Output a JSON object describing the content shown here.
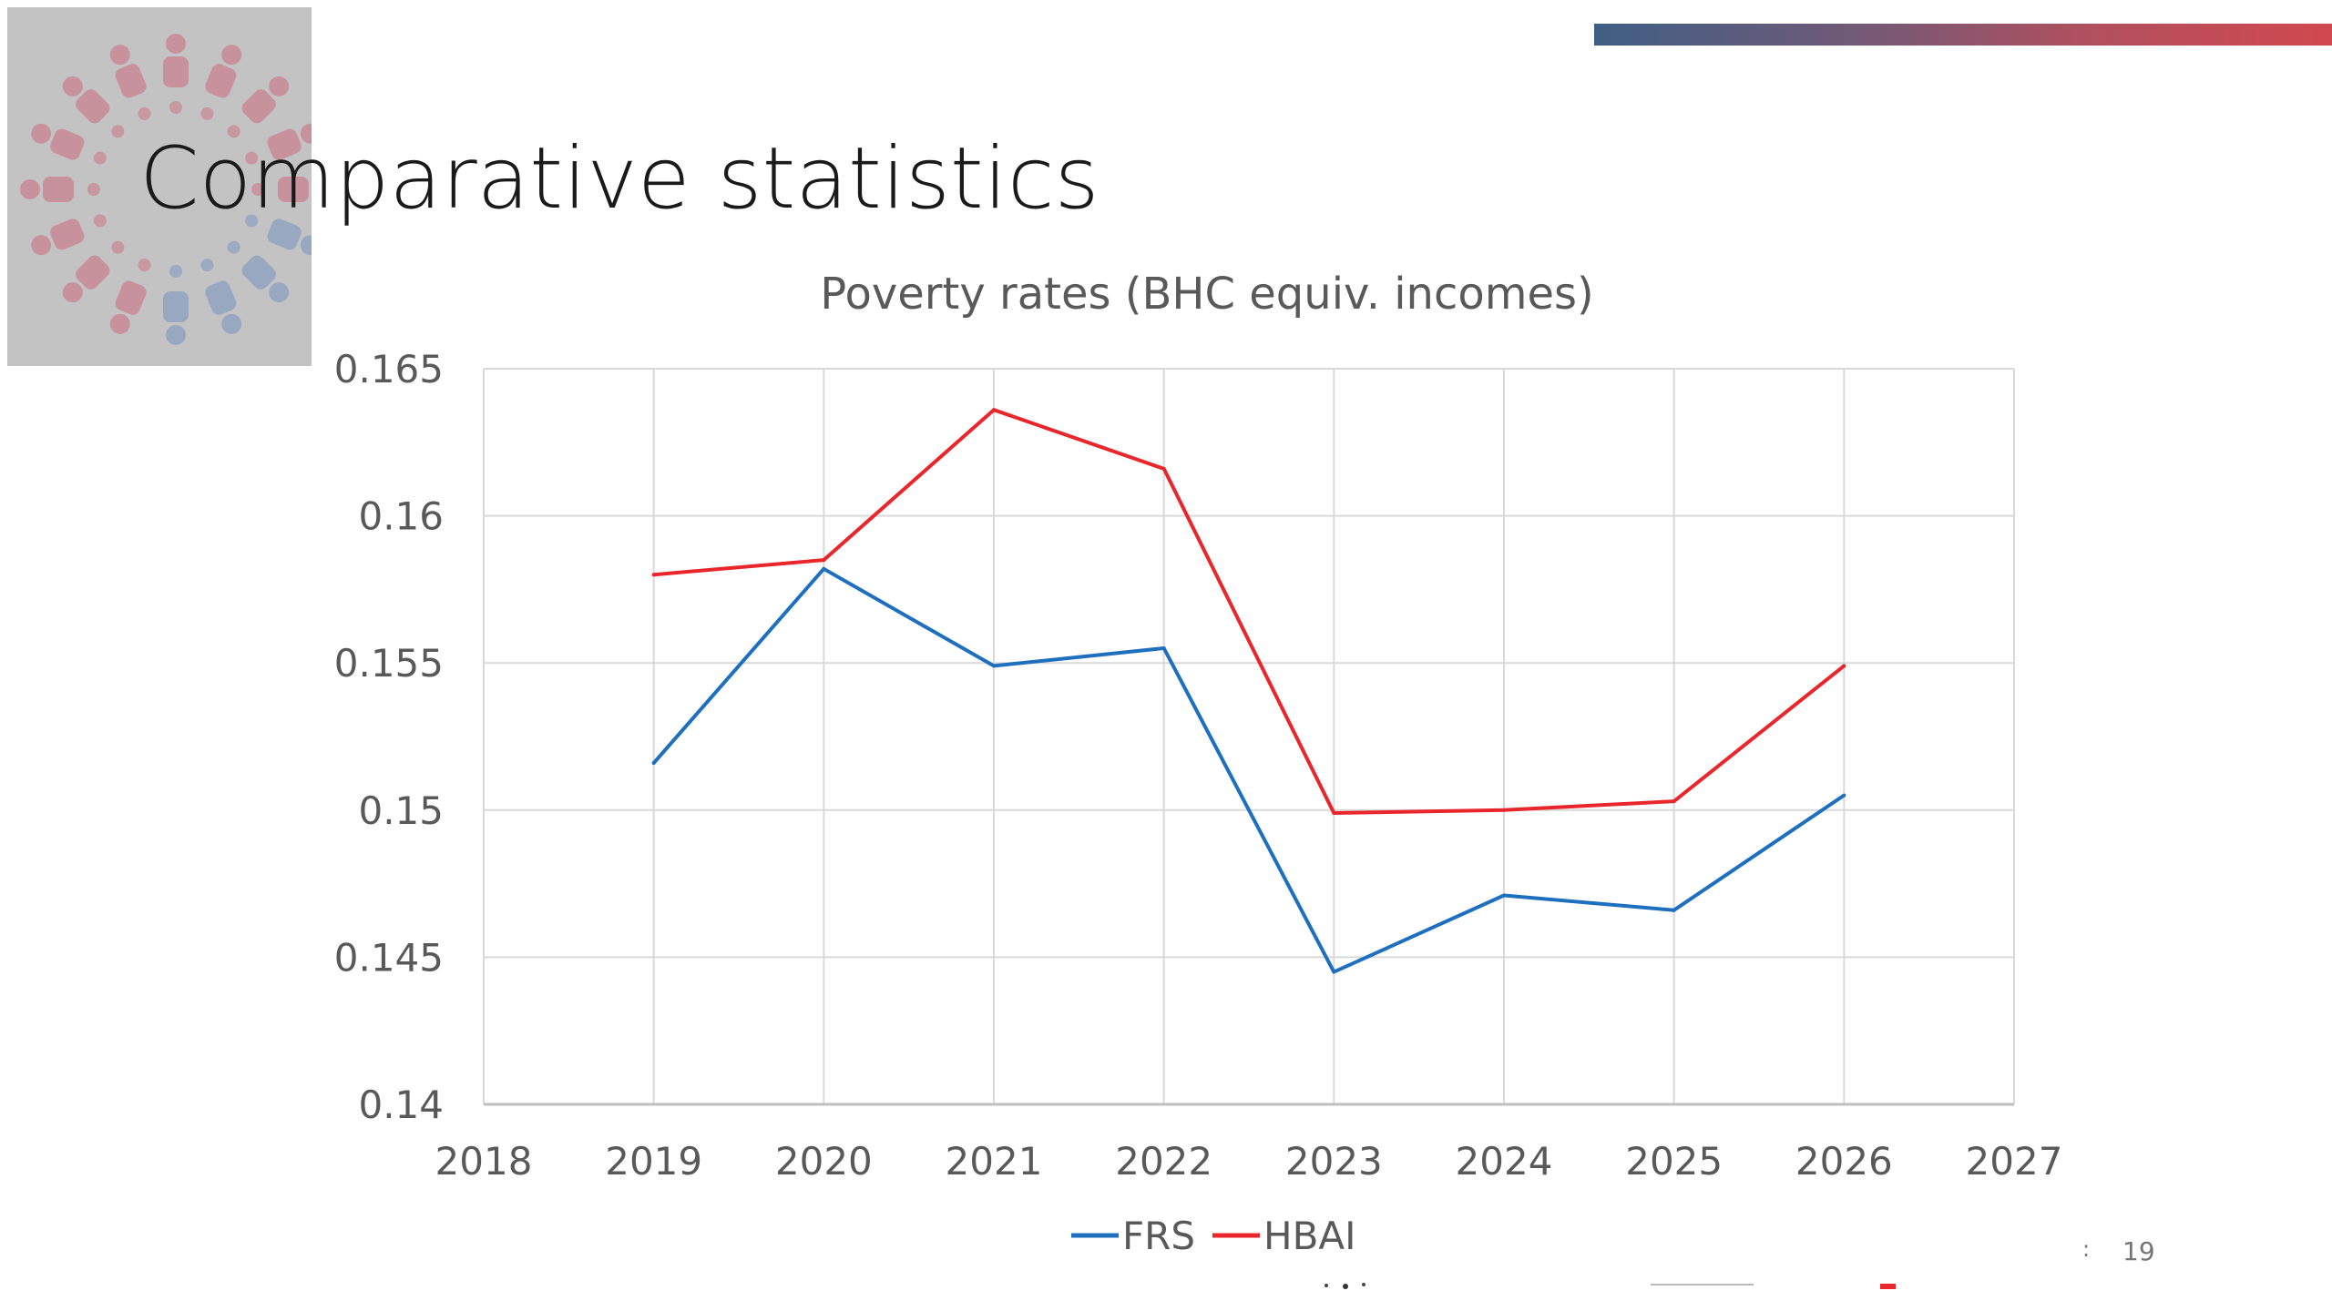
{
  "slide": {
    "title": "Comparative statistics",
    "page_number": "19",
    "page_separator": ":",
    "accent_bar_colors": [
      "#3f5f84",
      "#d1484f"
    ]
  },
  "logo": {
    "icon": "people-circle-logo-icon",
    "colors": [
      "#c98a96",
      "#8fa3c0"
    ]
  },
  "chart_data": {
    "type": "line",
    "title": "Poverty rates (BHC equiv. incomes)",
    "xlabel": "",
    "ylabel": "",
    "xlim": [
      2018,
      2027
    ],
    "ylim": [
      0.14,
      0.165
    ],
    "x_ticks": [
      "2018",
      "2019",
      "2020",
      "2021",
      "2022",
      "2023",
      "2024",
      "2025",
      "2026",
      "2027"
    ],
    "y_ticks": [
      "0.14",
      "0.145",
      "0.15",
      "0.155",
      "0.16",
      "0.165"
    ],
    "grid": true,
    "legend_position": "bottom",
    "x": [
      2019,
      2020,
      2021,
      2022,
      2023,
      2024,
      2025,
      2026
    ],
    "series": [
      {
        "name": "FRS",
        "color": "#1f6fbf",
        "values": [
          0.1516,
          0.1582,
          0.1549,
          0.1555,
          0.1445,
          0.1471,
          0.1466,
          0.1505
        ]
      },
      {
        "name": "HBAI",
        "color": "#e8262b",
        "values": [
          0.158,
          0.1585,
          0.1636,
          0.1616,
          0.1499,
          0.15,
          0.1503,
          0.1549
        ]
      }
    ]
  }
}
